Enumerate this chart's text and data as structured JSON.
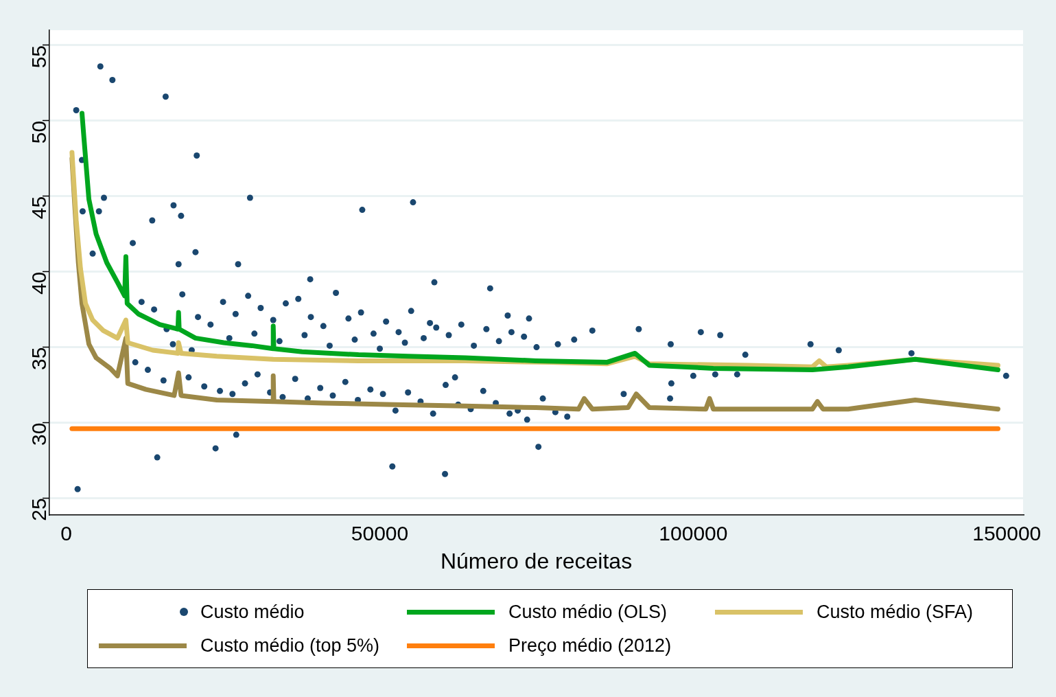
{
  "chart_data": {
    "type": "scatter",
    "xlabel": "Número de receitas",
    "xlim": [
      -2700,
      152600
    ],
    "xticks": [
      0,
      50000,
      100000,
      150000
    ],
    "ylim": [
      23.9,
      56
    ],
    "yticks": [
      25,
      30,
      35,
      40,
      45,
      50,
      55
    ],
    "grid": "y",
    "legend": "bottom",
    "series": [
      {
        "name": "Custo médio",
        "marker": "circle",
        "color": "#1a476f",
        "x": [
          1580,
          5430,
          7350,
          15840,
          20800,
          2490,
          6000,
          29300,
          47200,
          55300,
          17100,
          18300,
          5200,
          2600,
          13700,
          4200,
          10600,
          20600,
          1800,
          14500,
          23800,
          27100,
          52000,
          60400,
          75300,
          67600,
          58700,
          38900,
          27400,
          17900,
          70400,
          73800,
          83900,
          91300,
          101200,
          104300,
          108300,
          118700,
          123200,
          134800,
          149900,
          100000,
          96500,
          88900,
          96300,
          79900,
          73500,
          70700,
          96400,
          81000,
          78400,
          107000,
          103500,
          12000,
          14000,
          16000,
          18500,
          21000,
          23000,
          25000,
          27000,
          29000,
          31000,
          33000,
          35000,
          37000,
          39000,
          41000,
          43000,
          45000,
          47000,
          49000,
          51000,
          53000,
          55000,
          57000,
          59000,
          61000,
          63000,
          65000,
          67000,
          69000,
          71000,
          73000,
          75000,
          13000,
          15500,
          19500,
          22000,
          24500,
          26500,
          28500,
          30500,
          32500,
          34500,
          36500,
          38500,
          40500,
          42500,
          44500,
          46500,
          48500,
          50500,
          52500,
          54500,
          56500,
          58500,
          60500,
          62500,
          64500,
          66500,
          68500,
          72000,
          76000,
          78000,
          11000,
          17000,
          20000,
          26000,
          30000,
          34000,
          38000,
          42000,
          46000,
          50000,
          54000,
          58000,
          62000
        ],
        "values": [
          50.7,
          53.6,
          52.7,
          51.6,
          47.7,
          47.4,
          44.9,
          44.9,
          44.1,
          44.6,
          44.4,
          43.7,
          44.0,
          44.0,
          43.4,
          41.2,
          41.9,
          41.3,
          25.6,
          27.7,
          28.3,
          29.2,
          27.1,
          26.6,
          28.4,
          38.9,
          39.3,
          39.5,
          40.5,
          40.5,
          37.1,
          36.9,
          36.1,
          36.2,
          36.0,
          35.8,
          34.5,
          35.2,
          34.8,
          34.6,
          33.1,
          33.1,
          32.6,
          31.9,
          31.6,
          30.4,
          30.2,
          30.6,
          35.2,
          35.5,
          35.2,
          33.2,
          33.2,
          38.0,
          37.5,
          36.2,
          38.5,
          37.0,
          36.5,
          38.0,
          37.2,
          38.4,
          37.6,
          36.8,
          37.9,
          38.2,
          37.0,
          36.4,
          38.6,
          36.9,
          37.3,
          35.9,
          36.7,
          36.0,
          37.4,
          35.6,
          36.3,
          35.8,
          36.5,
          35.1,
          36.2,
          35.4,
          36.0,
          35.7,
          35.0,
          33.5,
          32.8,
          33.0,
          32.4,
          32.1,
          31.9,
          32.6,
          33.2,
          32.0,
          31.7,
          32.9,
          31.6,
          32.3,
          31.8,
          32.7,
          31.5,
          32.2,
          31.9,
          30.8,
          32.0,
          31.4,
          30.6,
          32.5,
          31.2,
          30.9,
          32.1,
          31.3,
          30.8,
          31.6,
          30.7,
          34.0,
          35.2,
          34.8,
          35.6,
          35.9,
          35.4,
          35.8,
          35.1,
          35.5,
          34.9,
          35.3,
          36.6,
          33.0
        ]
      },
      {
        "name": "Custo médio (OLS)",
        "type": "line",
        "marker": "none",
        "color": "#00a61e",
        "x": [
          2500,
          2800,
          3600,
          4750,
          6450,
          8150,
          9300,
          9500,
          9700,
          11500,
          14900,
          17800,
          17900,
          18000,
          20600,
          25100,
          29600,
          33000,
          33000,
          33100,
          37600,
          46600,
          54500,
          63600,
          74900,
          86200,
          90700,
          93000,
          103200,
          119000,
          124700,
          135400,
          148600
        ],
        "values": [
          50.5,
          48.9,
          44.8,
          42.5,
          40.6,
          39.3,
          38.4,
          41.0,
          37.9,
          37.2,
          36.5,
          36.2,
          37.3,
          36.2,
          35.6,
          35.3,
          35.1,
          34.9,
          36.4,
          34.9,
          34.7,
          34.5,
          34.4,
          34.3,
          34.1,
          34.0,
          34.6,
          33.8,
          33.6,
          33.5,
          33.7,
          34.2,
          33.5
        ]
      },
      {
        "name": "Custo médio (SFA)",
        "type": "line",
        "marker": "none",
        "color": "#d9c267",
        "x": [
          900,
          1580,
          2260,
          3050,
          4200,
          5900,
          8150,
          9500,
          9800,
          13800,
          17800,
          17900,
          18300,
          24000,
          33000,
          46600,
          63600,
          77100,
          86200,
          90700,
          93000,
          108800,
          119000,
          120100,
          121200,
          124700,
          135400,
          148600
        ],
        "values": [
          47.9,
          43.4,
          40.2,
          37.9,
          36.8,
          36.1,
          35.6,
          36.8,
          35.3,
          34.8,
          34.6,
          35.3,
          34.6,
          34.4,
          34.2,
          34.1,
          34.1,
          34.0,
          33.9,
          34.4,
          33.9,
          33.8,
          33.7,
          34.1,
          33.7,
          33.8,
          34.2,
          33.8
        ]
      },
      {
        "name": "Custo médio (top 5%)",
        "type": "line",
        "marker": "none",
        "color": "#9c8847",
        "x": [
          900,
          1360,
          1920,
          2490,
          3600,
          4750,
          7000,
          8150,
          9500,
          9800,
          12700,
          17200,
          17900,
          18300,
          24000,
          33000,
          33000,
          33100,
          41000,
          52300,
          63600,
          74900,
          81700,
          82600,
          83900,
          89600,
          90900,
          93000,
          102000,
          102600,
          103200,
          119000,
          119800,
          120700,
          124700,
          135400,
          148600
        ],
        "values": [
          47.5,
          44.3,
          40.6,
          37.9,
          35.2,
          34.3,
          33.6,
          33.1,
          35.6,
          32.6,
          32.2,
          31.8,
          33.3,
          31.8,
          31.5,
          31.4,
          33.1,
          31.4,
          31.3,
          31.2,
          31.1,
          31.0,
          30.9,
          31.6,
          30.9,
          31.0,
          31.9,
          31.0,
          30.9,
          31.6,
          30.9,
          30.9,
          31.4,
          30.9,
          30.9,
          31.5,
          30.9
        ]
      },
      {
        "name": "Preço médio (2012)",
        "type": "line",
        "marker": "none",
        "color": "#ff7f0e",
        "x": [
          900,
          148600
        ],
        "values": [
          29.6,
          29.6
        ]
      }
    ]
  }
}
